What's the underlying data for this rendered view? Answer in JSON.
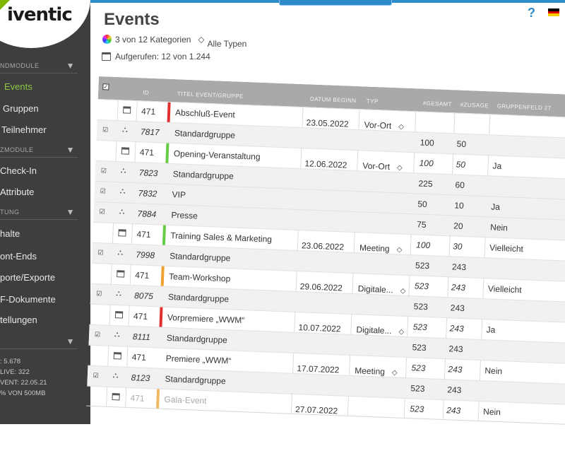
{
  "app": {
    "logo": "iventic"
  },
  "sidebar": {
    "sections": [
      {
        "label": "NDMODULE",
        "items": [
          "Events",
          "Gruppen",
          "Teilnehmer"
        ]
      },
      {
        "label": "ZMODULE",
        "items": [
          "Check-In",
          "Attribute"
        ]
      },
      {
        "label": "TUNG",
        "items": [
          "halte",
          "ont-Ends",
          "porte/Exporte",
          "F-Dokumente",
          "tellungen"
        ]
      }
    ],
    "active_item": "Events",
    "stats": [
      ": 5.678",
      "LIVE: 322",
      "VENT: 22.05.21",
      "% VON 500MB"
    ]
  },
  "header": {
    "title": "Events",
    "categories": "3 von 12 Kategorien",
    "types": "Alle Typen",
    "viewed": "Aufgerufen: 12 von 1.244",
    "help": "?"
  },
  "table": {
    "columns": {
      "id": "ID",
      "title": "TITEL EVENT/GRUPPE",
      "date": "DATUM BEGINN",
      "type": "TYP",
      "total": "#GESAMT",
      "promised": "#ZUSAGE",
      "field27": "GRUPPENFELD 27"
    },
    "groups": [
      {
        "id": "471",
        "title": "Abschluß-Event",
        "date": "23.05.2022",
        "type": "Vor-Ort",
        "color": "#e03030",
        "rows": [
          {
            "id": "7817",
            "name": "Standardgruppe",
            "total": "100",
            "promised": "50",
            "field": ""
          }
        ]
      },
      {
        "id": "471",
        "title": "Opening-Veranstaltung",
        "date": "12.06.2022",
        "type": "Vor-Ort",
        "color": "#66cc44",
        "rows": [
          {
            "id": "7823",
            "name": "Standardgruppe",
            "total": "225",
            "promised": "60",
            "field": ""
          },
          {
            "id": "7832",
            "name": "VIP",
            "total": "50",
            "promised": "10",
            "field": "Ja"
          },
          {
            "id": "7884",
            "name": "Presse",
            "total": "75",
            "promised": "20",
            "field": "Nein"
          }
        ],
        "head_total": "100",
        "head_promised": "50",
        "head_field": "Ja"
      },
      {
        "id": "471",
        "title": "Training Sales & Marketing",
        "date": "23.06.2022",
        "type": "Meeting",
        "color": "#66cc44",
        "rows": [
          {
            "id": "7998",
            "name": "Standardgruppe",
            "total": "523",
            "promised": "243",
            "field": ""
          }
        ],
        "head_total": "100",
        "head_promised": "30",
        "head_field": "Vielleicht"
      },
      {
        "id": "471",
        "title": "Team-Workshop",
        "date": "29.06.2022",
        "type": "Digitale...",
        "color": "#f0a030",
        "rows": [
          {
            "id": "8075",
            "name": "Standardgruppe",
            "total": "523",
            "promised": "243",
            "field": ""
          }
        ],
        "head_total": "523",
        "head_promised": "243",
        "head_field": "Vielleicht"
      },
      {
        "id": "471",
        "title": "Vorpremiere „WWM“",
        "date": "10.07.2022",
        "type": "Digitale...",
        "color": "#e03030",
        "rows": [
          {
            "id": "8111",
            "name": "Standardgruppe",
            "total": "523",
            "promised": "243",
            "field": ""
          }
        ],
        "head_total": "523",
        "head_promised": "243",
        "head_field": "Ja"
      },
      {
        "id": "471",
        "title": "Premiere „WWM“",
        "date": "17.07.2022",
        "type": "Meeting",
        "color": "#ffffff",
        "rows": [
          {
            "id": "8123",
            "name": "Standardgruppe",
            "total": "523",
            "promised": "243",
            "field": ""
          }
        ],
        "head_total": "523",
        "head_promised": "243",
        "head_field": "Nein"
      },
      {
        "id": "471",
        "title": "Gala-Event",
        "date": "27.07.2022",
        "type": "",
        "color": "#f0b860",
        "rows": [],
        "head_total": "523",
        "head_promised": "243",
        "head_field": "Nein"
      }
    ]
  }
}
